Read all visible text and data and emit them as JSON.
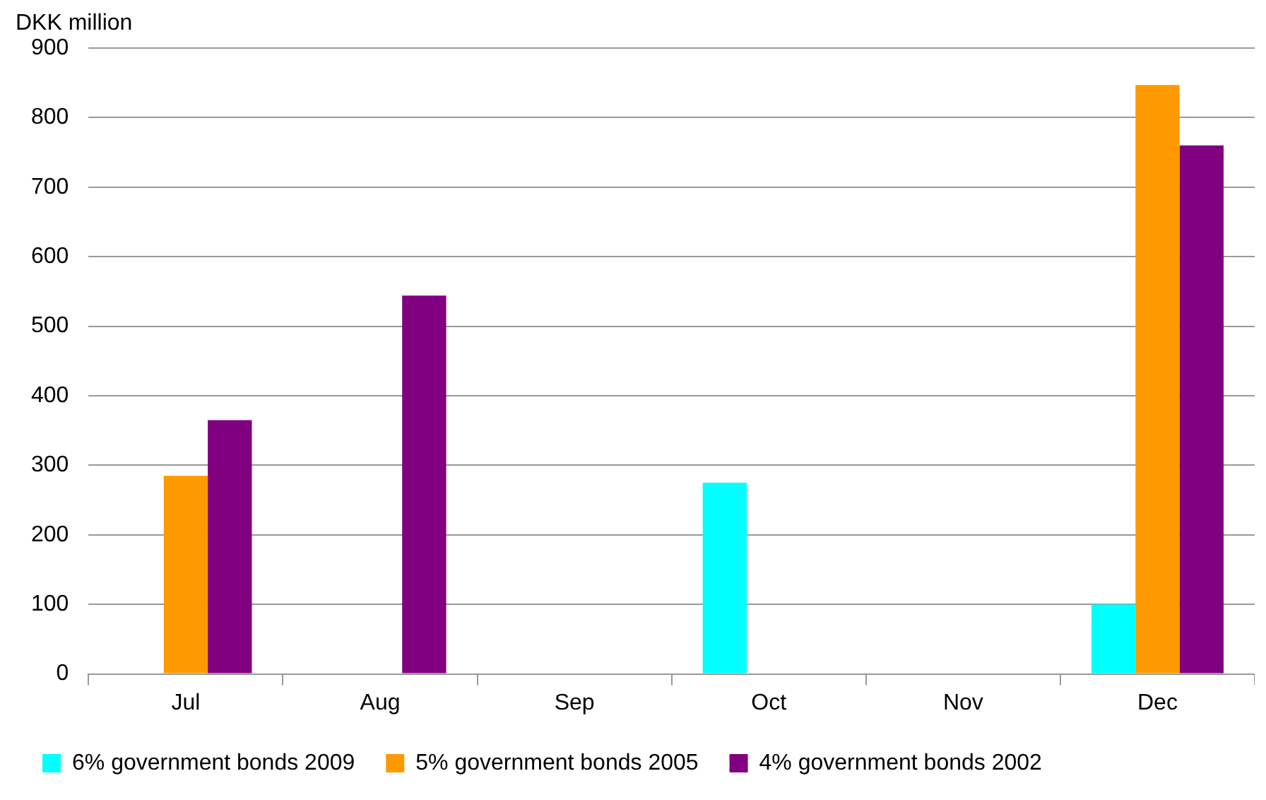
{
  "chart_data": {
    "type": "bar",
    "ylabel": "DKK million",
    "categories": [
      "Jul",
      "Aug",
      "Sep",
      "Oct",
      "Nov",
      "Dec"
    ],
    "series": [
      {
        "name": "6% government bonds 2009",
        "color": "#00ffff",
        "values": [
          null,
          null,
          null,
          275,
          null,
          100
        ]
      },
      {
        "name": "5% government bonds 2005",
        "color": "#ff9900",
        "values": [
          285,
          null,
          null,
          null,
          null,
          847
        ]
      },
      {
        "name": "4% government bonds 2002",
        "color": "#800080",
        "values": [
          365,
          544,
          null,
          null,
          null,
          760
        ]
      }
    ],
    "ylim": [
      0,
      900
    ],
    "yticks": [
      0,
      100,
      200,
      300,
      400,
      500,
      600,
      700,
      800,
      900
    ],
    "grid": "y",
    "legend": "bottom"
  }
}
